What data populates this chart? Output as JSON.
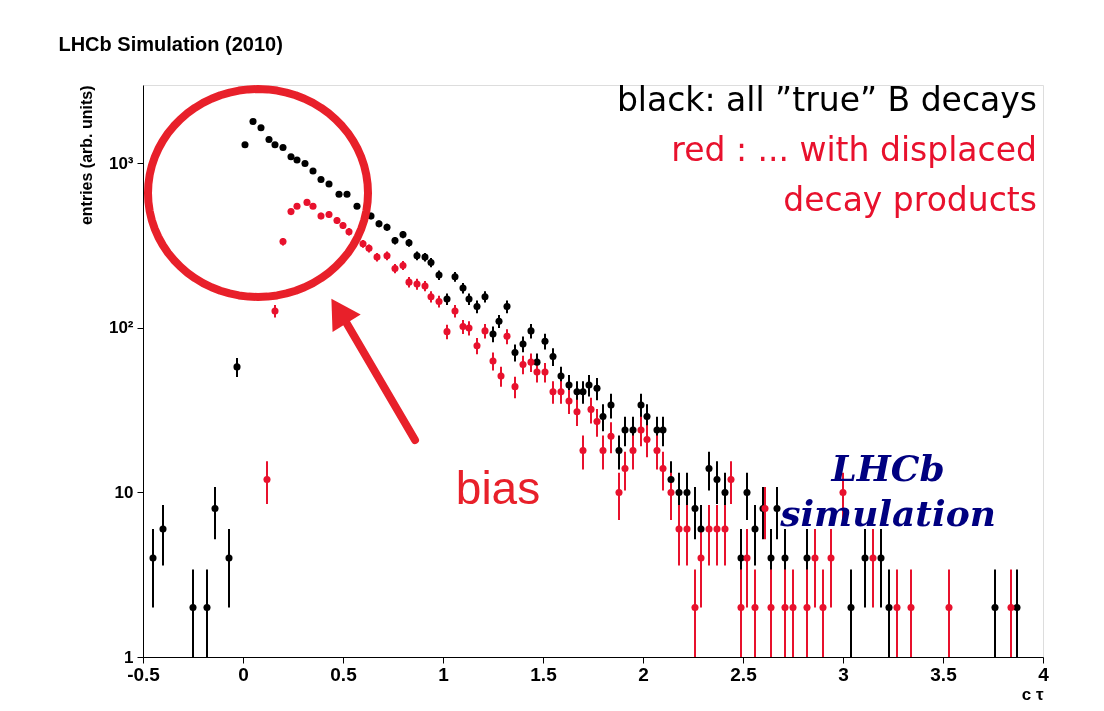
{
  "chart_data": {
    "type": "scatter",
    "title": "LHCb Simulation (2010)",
    "xlabel": "c τ",
    "ylabel": "entries (arb. units)",
    "xlim": [
      -0.5,
      4
    ],
    "xticks": [
      -0.5,
      0,
      0.5,
      1,
      1.5,
      2,
      2.5,
      3,
      3.5,
      4
    ],
    "ylim": [
      1,
      3000
    ],
    "yticks": [
      1,
      10,
      {
        "value": 100,
        "label": "10²"
      },
      {
        "value": 1000,
        "label": "10³"
      }
    ],
    "log": "y",
    "grid": false,
    "legend": "top right",
    "marker": "circle",
    "annotations": [
      "bias",
      "LHCb simulation"
    ],
    "series": [
      {
        "name": "black: all ”true” B decays",
        "color": "#000000",
        "x": [
          -0.45,
          -0.4,
          -0.25,
          -0.18,
          -0.14,
          -0.07,
          -0.03,
          0.01,
          0.05,
          0.09,
          0.13,
          0.16,
          0.2,
          0.24,
          0.27,
          0.31,
          0.35,
          0.39,
          0.43,
          0.48,
          0.52,
          0.57,
          0.64,
          0.68,
          0.72,
          0.76,
          0.8,
          0.83,
          0.87,
          0.91,
          0.94,
          0.98,
          1.02,
          1.06,
          1.1,
          1.13,
          1.17,
          1.21,
          1.25,
          1.28,
          1.32,
          1.36,
          1.4,
          1.44,
          1.47,
          1.51,
          1.55,
          1.59,
          1.63,
          1.67,
          1.7,
          1.73,
          1.77,
          1.8,
          1.84,
          1.88,
          1.91,
          1.95,
          1.99,
          2.02,
          2.07,
          2.1,
          2.14,
          2.18,
          2.22,
          2.26,
          2.29,
          2.33,
          2.37,
          2.41,
          2.49,
          2.52,
          2.56,
          2.6,
          2.64,
          2.67,
          2.71,
          2.82,
          3.04,
          3.11,
          3.19,
          3.23,
          3.76,
          3.87
        ],
        "values": [
          4,
          6,
          2,
          2,
          8,
          4,
          58,
          1300,
          1800,
          1650,
          1400,
          1300,
          1250,
          1100,
          1050,
          1000,
          900,
          800,
          750,
          650,
          650,
          550,
          480,
          430,
          410,
          340,
          370,
          330,
          275,
          270,
          250,
          210,
          150,
          205,
          175,
          150,
          135,
          155,
          92,
          110,
          135,
          71,
          80,
          96,
          62,
          83,
          67,
          51,
          45,
          41,
          41,
          45,
          43,
          29,
          34,
          18,
          24,
          24,
          34,
          29,
          24,
          24,
          12,
          10,
          10,
          8,
          6,
          14,
          12,
          10,
          4,
          10,
          6,
          8,
          4,
          8,
          4,
          4,
          2,
          4,
          4,
          2,
          2,
          2
        ],
        "errors": [
          2,
          2.4,
          [
            1,
            3.4
          ],
          [
            1,
            3.4
          ],
          2.8,
          2,
          7.6,
          null,
          null,
          null,
          null,
          null,
          null,
          null,
          null,
          null,
          null,
          null,
          null,
          null,
          null,
          null,
          22,
          21,
          20,
          18,
          19,
          18,
          17,
          16,
          16,
          14,
          12,
          14,
          13,
          12,
          12,
          12,
          10,
          10,
          12,
          8.4,
          8.9,
          9.8,
          7.9,
          9.1,
          8.2,
          7.1,
          6.7,
          6.4,
          6.4,
          6.7,
          6.6,
          5.4,
          5.8,
          4.2,
          4.9,
          4.9,
          5.8,
          5.4,
          4.9,
          4.9,
          3.5,
          3.2,
          3.2,
          2.8,
          2.4,
          3.7,
          3.5,
          3.2,
          2,
          3.2,
          2.4,
          2.8,
          2,
          2.8,
          2,
          2,
          [
            1,
            3.4
          ],
          2,
          2,
          [
            1,
            3.4
          ],
          [
            1,
            3.4
          ],
          [
            1,
            3.4
          ]
        ]
      },
      {
        "name": "red   : ... with displaced decay products",
        "color": "#e8112d",
        "x": [
          0.12,
          0.16,
          0.2,
          0.24,
          0.27,
          0.32,
          0.35,
          0.39,
          0.43,
          0.47,
          0.5,
          0.53,
          0.6,
          0.63,
          0.67,
          0.72,
          0.76,
          0.8,
          0.83,
          0.87,
          0.91,
          0.94,
          0.98,
          1.02,
          1.06,
          1.1,
          1.13,
          1.17,
          1.21,
          1.25,
          1.29,
          1.32,
          1.36,
          1.4,
          1.44,
          1.47,
          1.51,
          1.55,
          1.59,
          1.63,
          1.67,
          1.7,
          1.74,
          1.77,
          1.8,
          1.84,
          1.88,
          1.91,
          1.95,
          1.99,
          2.02,
          2.07,
          2.1,
          2.14,
          2.18,
          2.22,
          2.26,
          2.29,
          2.33,
          2.37,
          2.41,
          2.44,
          2.49,
          2.52,
          2.56,
          2.61,
          2.64,
          2.71,
          2.75,
          2.82,
          2.86,
          2.9,
          2.94,
          3.0,
          3.15,
          3.27,
          3.34,
          3.53,
          3.84
        ],
        "values": [
          12,
          127,
          335,
          510,
          550,
          580,
          550,
          480,
          490,
          450,
          420,
          385,
          325,
          305,
          270,
          275,
          230,
          240,
          190,
          185,
          180,
          155,
          145,
          95,
          127,
          102,
          100,
          78,
          96,
          63,
          51,
          89,
          44,
          60,
          62,
          54,
          54,
          41,
          41,
          36,
          31,
          18,
          32,
          27,
          18,
          22,
          10,
          14,
          18,
          24,
          21,
          18,
          14,
          10,
          6,
          6,
          2,
          4,
          6,
          6,
          6,
          12,
          2,
          4,
          2,
          8,
          2,
          2,
          2,
          2,
          4,
          2,
          4,
          10,
          4,
          2,
          2,
          2,
          2
        ],
        "errors": [
          3.5,
          11,
          18,
          null,
          null,
          null,
          null,
          22,
          22,
          21,
          20,
          20,
          18,
          17,
          16,
          17,
          15,
          15,
          14,
          14,
          13,
          12,
          12,
          9.7,
          11,
          10,
          10,
          8.8,
          9.8,
          7.9,
          7.1,
          9.4,
          6.6,
          7.7,
          7.9,
          7.3,
          7.3,
          6.4,
          6.4,
          6,
          5.6,
          4.2,
          5.7,
          5.2,
          4.2,
          4.7,
          3.2,
          3.7,
          4.2,
          4.9,
          4.6,
          4.2,
          3.7,
          3.2,
          2.4,
          2.4,
          [
            1,
            3.4
          ],
          2,
          2.4,
          2.4,
          2.4,
          3.5,
          [
            1,
            3.4
          ],
          2,
          [
            1,
            3.4
          ],
          2.8,
          [
            1,
            3.4
          ],
          [
            1,
            3.4
          ],
          [
            1,
            3.4
          ],
          [
            1,
            3.4
          ],
          2,
          [
            1,
            3.4
          ],
          2,
          3.2,
          2,
          [
            1,
            3.4
          ],
          [
            1,
            3.4
          ],
          [
            1,
            3.4
          ],
          [
            1,
            3.4
          ]
        ]
      }
    ]
  }
}
